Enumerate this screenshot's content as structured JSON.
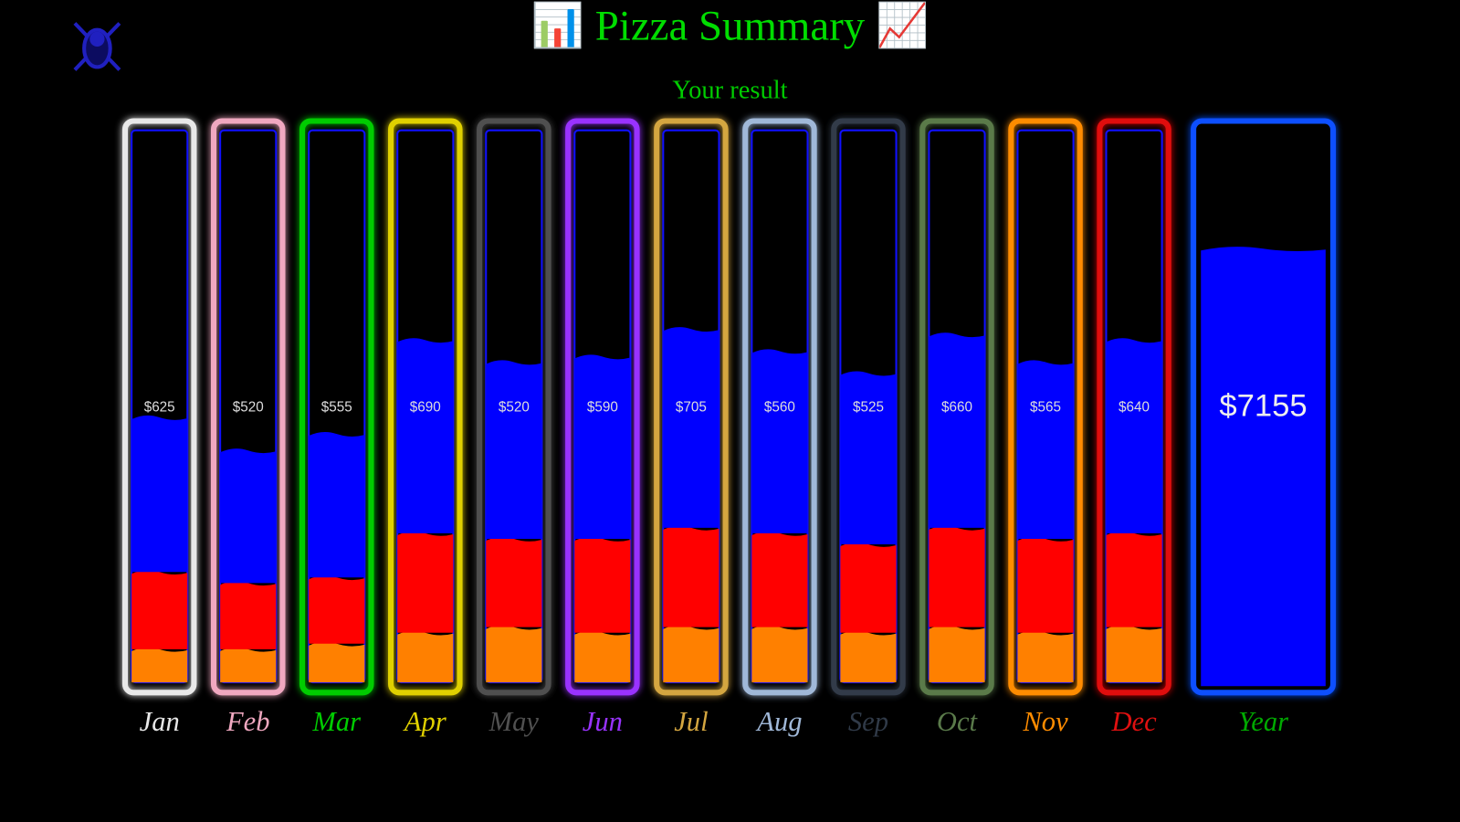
{
  "header": {
    "title": "📊 Pizza Summary 📈",
    "subtitle": "Your result"
  },
  "chart_data": {
    "type": "tubes",
    "categories": [
      "Jan",
      "Feb",
      "Mar",
      "Apr",
      "May",
      "Jun",
      "Jul",
      "Aug",
      "Sep",
      "Oct",
      "Nov",
      "Dec"
    ],
    "tube_colors": [
      "#e8e8e8",
      "#f0a8c0",
      "#00cc00",
      "#e0d000",
      "#505050",
      "#9933ff",
      "#d4a640",
      "#a0b8d8",
      "#303a48",
      "#5a7a4a",
      "#ff8c00",
      "#e01010"
    ],
    "values": [
      625,
      520,
      555,
      690,
      520,
      590,
      705,
      560,
      525,
      660,
      565,
      640
    ],
    "value_labels": [
      "$625",
      "$520",
      "$555",
      "$690",
      "$520",
      "$590",
      "$705",
      "$560",
      "$525",
      "$660",
      "$565",
      "$640"
    ],
    "ylim": [
      0,
      100
    ],
    "series": [
      {
        "color": "#ff8000",
        "values": [
          6,
          6,
          7,
          9,
          10,
          9,
          10,
          10,
          9,
          10,
          9,
          10
        ]
      },
      {
        "color": "#ff0000",
        "values": [
          14,
          12,
          12,
          18,
          16,
          17,
          18,
          17,
          16,
          18,
          17,
          17
        ]
      },
      {
        "color": "#0000ff",
        "values": [
          28,
          24,
          26,
          35,
          32,
          33,
          36,
          33,
          31,
          35,
          32,
          35
        ]
      }
    ],
    "total": {
      "label": "Year",
      "value": 7155,
      "value_label": "$7155",
      "fill": 79,
      "color": "#0000ff",
      "tube_color": "#0a50ff",
      "label_color": "#00aa00"
    }
  }
}
